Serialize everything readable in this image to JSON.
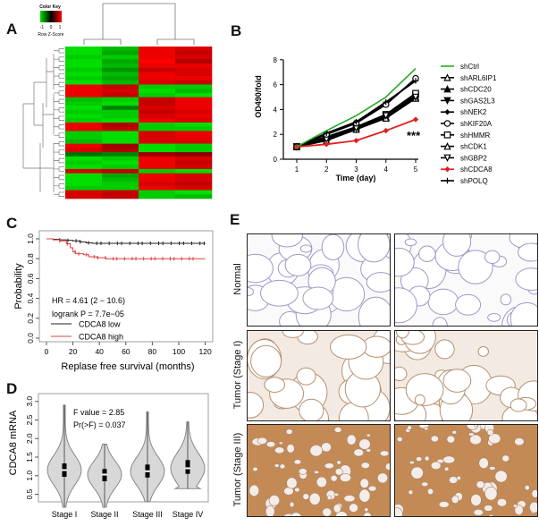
{
  "panels": {
    "a": "A",
    "b": "B",
    "c": "C",
    "d": "D",
    "e": "E"
  },
  "chart_data": [
    {
      "type": "heatmap",
      "panel": "A",
      "color_key": {
        "title": "Color Key",
        "ticks": [
          "-1",
          "0",
          "1"
        ],
        "label": "Row Z-Score",
        "low_color": "#00e000",
        "mid_color": "#000000",
        "high_color": "#ff0000"
      },
      "columns": 4,
      "column_dendrogram": "two groups (1-2 vs 3-4)",
      "rows": [
        [
          -0.9,
          -0.7,
          0.9,
          0.8
        ],
        [
          -0.9,
          -0.6,
          0.9,
          0.7
        ],
        [
          -0.8,
          -0.8,
          0.9,
          0.8
        ],
        [
          -0.9,
          -0.6,
          1,
          0.6
        ],
        [
          -0.9,
          -0.7,
          0.9,
          0.9
        ],
        [
          -0.8,
          -0.5,
          0.7,
          0.8
        ],
        [
          -0.9,
          -0.7,
          0.9,
          0.8
        ],
        [
          -0.8,
          -0.6,
          0.9,
          0.9
        ],
        [
          -0.9,
          -0.7,
          0.8,
          0.7
        ],
        [
          0.9,
          0.7,
          -0.8,
          -0.8
        ],
        [
          0.9,
          0.8,
          -0.9,
          -0.7
        ],
        [
          0.9,
          0.7,
          -0.8,
          -0.9
        ],
        [
          -0.7,
          -0.8,
          0.7,
          0.9
        ],
        [
          -0.8,
          -0.9,
          0.7,
          0.9
        ],
        [
          -0.9,
          -0.4,
          0.8,
          0.9
        ],
        [
          -0.8,
          -0.8,
          0.7,
          0.8
        ],
        [
          -0.9,
          -0.8,
          0.8,
          0.9
        ],
        [
          -0.8,
          -0.9,
          0.9,
          0.8
        ],
        [
          0.9,
          0.6,
          -0.8,
          -0.9
        ],
        [
          0.9,
          0.7,
          -0.8,
          -0.8
        ],
        [
          -0.8,
          -0.9,
          0.8,
          0.9
        ],
        [
          -0.8,
          -0.9,
          0.8,
          0.9
        ],
        [
          -0.7,
          -0.9,
          0.8,
          0.8
        ],
        [
          0.9,
          0.5,
          -0.9,
          -0.8
        ],
        [
          0.8,
          0.6,
          -0.9,
          -0.8
        ],
        [
          -0.3,
          -0.4,
          0.5,
          0.4
        ],
        [
          -0.9,
          -0.8,
          0.9,
          0.8
        ],
        [
          -0.8,
          -0.9,
          0.9,
          0.7
        ],
        [
          -0.9,
          -0.8,
          0.9,
          0.8
        ],
        [
          0.8,
          0.7,
          -0.8,
          -0.9
        ],
        [
          -0.9,
          -0.6,
          0.9,
          0.8
        ],
        [
          -0.9,
          -0.7,
          0.9,
          0.8
        ],
        [
          -0.9,
          -0.8,
          0.8,
          0.7
        ],
        [
          -0.8,
          -0.8,
          0.9,
          0.8
        ],
        [
          0.8,
          0.7,
          -0.8,
          -0.9
        ],
        [
          0.8,
          0.7,
          -0.8,
          -0.7
        ]
      ]
    },
    {
      "type": "line",
      "panel": "B",
      "xlabel": "Time (day)",
      "ylabel": "OD490/fold",
      "x": [
        1,
        2,
        3,
        4,
        5
      ],
      "xlim": [
        1,
        5
      ],
      "ylim": [
        0,
        8
      ],
      "yticks": [
        0,
        2,
        4,
        6,
        8
      ],
      "annotation": "***",
      "legend_position": "right",
      "series": [
        {
          "name": "shCtrl",
          "color": "#22aa22",
          "marker": "none",
          "values": [
            1,
            2.3,
            3.5,
            5.0,
            7.3
          ]
        },
        {
          "name": "shARL6IP1",
          "color": "#000000",
          "marker": "triangle-open",
          "values": [
            1,
            1.8,
            2.5,
            3.3,
            5.2
          ]
        },
        {
          "name": "shCDC20",
          "color": "#000000",
          "marker": "triangle",
          "values": [
            1,
            1.7,
            2.5,
            3.4,
            5.0
          ]
        },
        {
          "name": "shGAS2L3",
          "color": "#000000",
          "marker": "triangle-down",
          "values": [
            1,
            1.6,
            2.4,
            3.5,
            5.1
          ]
        },
        {
          "name": "shNEK2",
          "color": "#000000",
          "marker": "diamond",
          "values": [
            1,
            2.0,
            3.0,
            4.5,
            6.4
          ]
        },
        {
          "name": "shKIF20A",
          "color": "#000000",
          "marker": "circle-open",
          "values": [
            1,
            2.0,
            2.9,
            4.4,
            6.5
          ]
        },
        {
          "name": "shHMMR",
          "color": "#000000",
          "marker": "square-open",
          "values": [
            1,
            1.8,
            2.6,
            3.6,
            5.3
          ]
        },
        {
          "name": "shCDK1",
          "color": "#000000",
          "marker": "triangle-open",
          "values": [
            1,
            1.5,
            2.4,
            3.3,
            4.9
          ]
        },
        {
          "name": "shGBP2",
          "color": "#000000",
          "marker": "triangle-down-open",
          "values": [
            1,
            1.6,
            2.5,
            3.5,
            5.0
          ]
        },
        {
          "name": "shCDCA8",
          "color": "#e02020",
          "marker": "diamond",
          "values": [
            1,
            1.2,
            1.5,
            2.3,
            3.2
          ]
        },
        {
          "name": "shPOLQ",
          "color": "#000000",
          "marker": "plus",
          "values": [
            1,
            2.1,
            3.0,
            4.6,
            6.3
          ]
        }
      ]
    },
    {
      "type": "line",
      "subtype": "kaplan-meier",
      "panel": "C",
      "xlabel": "Replase free survival  (months)",
      "ylabel": "Probability",
      "xlim": [
        0,
        120
      ],
      "ylim": [
        0,
        1
      ],
      "xticks": [
        0,
        20,
        40,
        60,
        80,
        100,
        120
      ],
      "yticks": [
        "0.0",
        "0.2",
        "0.4",
        "0.6",
        "0.8",
        "1.0"
      ],
      "annotations": [
        "HR = 4.61 (2 − 10.6)",
        "logrank P = 7.7e−05"
      ],
      "legend_position": "bottom-left",
      "series": [
        {
          "name": "CDCA8  low",
          "color": "#222222",
          "x": [
            0,
            5,
            10,
            15,
            20,
            25,
            30,
            35,
            40,
            120
          ],
          "values": [
            1.0,
            0.995,
            0.99,
            0.985,
            0.98,
            0.97,
            0.96,
            0.955,
            0.955,
            0.955
          ]
        },
        {
          "name": "CDCA8  high",
          "color": "#e04040",
          "x": [
            0,
            5,
            10,
            15,
            18,
            20,
            22,
            28,
            32,
            38,
            45,
            120
          ],
          "values": [
            1.0,
            0.99,
            0.98,
            0.95,
            0.91,
            0.87,
            0.85,
            0.84,
            0.82,
            0.81,
            0.8,
            0.8
          ]
        }
      ]
    },
    {
      "type": "violin",
      "panel": "D",
      "ylabel": "CDCA8 mRNA",
      "ylim": [
        0,
        3.2
      ],
      "yticks": [
        "0.5",
        "1.0",
        "1.5",
        "2.0",
        "2.5",
        "3.0"
      ],
      "annotations": [
        "F value = 2.85",
        "Pr(>F) = 0.037"
      ],
      "categories": [
        "Stage I",
        "Stage II",
        "Stage III",
        "Stage IV"
      ],
      "stats": [
        {
          "min": 0.15,
          "q1": 0.97,
          "median": 1.15,
          "q3": 1.33,
          "max": 2.9
        },
        {
          "min": 0.15,
          "q1": 0.85,
          "median": 1.03,
          "q3": 1.18,
          "max": 1.85
        },
        {
          "min": 0.3,
          "q1": 0.95,
          "median": 1.12,
          "q3": 1.3,
          "max": 2.72
        },
        {
          "min": 0.65,
          "q1": 1.05,
          "median": 1.2,
          "q3": 1.42,
          "max": 2.45
        }
      ]
    }
  ],
  "ihc": {
    "rows": [
      {
        "label": "Normal",
        "stain": [
          0.05,
          0.07
        ]
      },
      {
        "label": "Tumor (Stage I)",
        "stain": [
          0.3,
          0.35
        ]
      },
      {
        "label": "Tumor (Stage III)",
        "stain": [
          0.95,
          0.7
        ]
      }
    ]
  }
}
